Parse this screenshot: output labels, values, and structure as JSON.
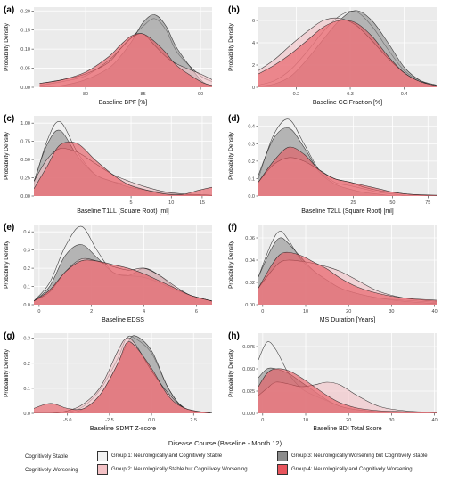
{
  "colors": {
    "panel_bg": "#ebebeb",
    "grid": "#ffffff",
    "group1_fill": "#f2f2f2",
    "group2_fill": "#f4c2c6",
    "group3_fill": "#8c8c8c",
    "group4_fill": "#e8545c",
    "outline": "#222222"
  },
  "legend": {
    "title": "Disease Course (Baseline - Month 12)",
    "row_labels": [
      "Cognitively Stable",
      "Cognitively Worsening"
    ],
    "items": [
      {
        "label": "Group 1: Neurologically and Cognitively Stable",
        "color": "#f2f2f2"
      },
      {
        "label": "Group 2: Neurologically Stable but Cognitively Worsening",
        "color": "#f4c2c6"
      },
      {
        "label": "Group 3: Neurologically Worsening but Cognitively Stable",
        "color": "#8c8c8c"
      },
      {
        "label": "Group 4: Neurologically and Cognitively Worsening",
        "color": "#e8545c"
      }
    ]
  },
  "chart_data": [
    {
      "panel": "(a)",
      "type": "area",
      "xlabel": "Baseline BPF [%]",
      "ylabel": "Probability Density",
      "xlim": [
        75.5,
        91
      ],
      "ylim": [
        0,
        0.21
      ],
      "xticks": [
        80,
        85,
        90
      ],
      "xtick_labels": [
        "80",
        "85",
        "90"
      ],
      "yticks": [
        0,
        0.05,
        0.1,
        0.15,
        0.2
      ],
      "ytick_labels": [
        "0.00",
        "0.05",
        "0.10",
        "0.15",
        "0.20"
      ],
      "x": [
        76,
        78,
        80,
        82,
        83,
        84,
        85,
        86,
        87,
        88,
        90,
        91
      ],
      "series": [
        {
          "group": 1,
          "values": [
            0.005,
            0.015,
            0.03,
            0.07,
            0.1,
            0.13,
            0.16,
            0.18,
            0.15,
            0.09,
            0.03,
            0.015
          ]
        },
        {
          "group": 2,
          "values": [
            0.01,
            0.02,
            0.035,
            0.065,
            0.1,
            0.13,
            0.14,
            0.11,
            0.08,
            0.06,
            0.035,
            0.02
          ]
        },
        {
          "group": 3,
          "values": [
            0.0,
            0.005,
            0.02,
            0.05,
            0.08,
            0.12,
            0.17,
            0.19,
            0.16,
            0.1,
            0.02,
            0.005
          ]
        },
        {
          "group": 4,
          "values": [
            0.01,
            0.02,
            0.04,
            0.08,
            0.11,
            0.135,
            0.14,
            0.12,
            0.09,
            0.055,
            0.015,
            0.005
          ]
        }
      ]
    },
    {
      "panel": "(b)",
      "type": "area",
      "xlabel": "Baseline CC Fraction [%]",
      "ylabel": "Probability Density",
      "xlim": [
        0.13,
        0.46
      ],
      "ylim": [
        0,
        7.2
      ],
      "xticks": [
        0.2,
        0.3,
        0.4
      ],
      "xtick_labels": [
        "0.2",
        "0.3",
        "0.4"
      ],
      "yticks": [
        0,
        2,
        4,
        6
      ],
      "ytick_labels": [
        "0",
        "2",
        "4",
        "6"
      ],
      "x": [
        0.13,
        0.16,
        0.19,
        0.22,
        0.25,
        0.28,
        0.31,
        0.34,
        0.37,
        0.4,
        0.43,
        0.46
      ],
      "series": [
        {
          "group": 1,
          "values": [
            0.2,
            0.6,
            1.6,
            3.2,
            5.0,
            6.4,
            6.8,
            5.5,
            3.4,
            1.5,
            0.6,
            0.2
          ]
        },
        {
          "group": 2,
          "values": [
            1.5,
            2.5,
            3.8,
            5.0,
            6.0,
            6.2,
            5.6,
            4.2,
            2.6,
            1.3,
            0.5,
            0.15
          ]
        },
        {
          "group": 3,
          "values": [
            0.1,
            0.3,
            1.0,
            2.5,
            4.3,
            6.0,
            6.9,
            6.0,
            4.0,
            1.8,
            0.6,
            0.1
          ]
        },
        {
          "group": 4,
          "values": [
            1.2,
            2.0,
            3.0,
            4.2,
            5.4,
            6.0,
            5.8,
            4.6,
            2.8,
            1.3,
            0.5,
            0.15
          ]
        }
      ]
    },
    {
      "panel": "(c)",
      "type": "area",
      "xlabel": "Baseline T1LL (Square Root) [ml]",
      "ylabel": "Probability Density",
      "xlim": [
        0,
        4.1
      ],
      "ylim": [
        0,
        1.1
      ],
      "xticks": [
        2.236,
        3.162,
        3.873
      ],
      "xtick_labels": [
        "5",
        "10",
        "15"
      ],
      "yticks": [
        0,
        0.25,
        0.5,
        0.75,
        1.0
      ],
      "ytick_labels": [
        "0.00",
        "0.25",
        "0.50",
        "0.75",
        "1.00"
      ],
      "x": [
        0.0,
        0.3,
        0.6,
        1.0,
        1.4,
        1.8,
        2.2,
        2.6,
        3.0,
        3.4,
        3.8,
        4.1
      ],
      "series": [
        {
          "group": 1,
          "values": [
            0.15,
            0.75,
            1.02,
            0.6,
            0.3,
            0.2,
            0.15,
            0.08,
            0.03,
            0.01,
            0.0,
            0.0
          ]
        },
        {
          "group": 2,
          "values": [
            0.2,
            0.5,
            0.65,
            0.6,
            0.45,
            0.3,
            0.2,
            0.12,
            0.06,
            0.03,
            0.02,
            0.01
          ]
        },
        {
          "group": 3,
          "values": [
            0.2,
            0.7,
            0.9,
            0.55,
            0.3,
            0.2,
            0.12,
            0.08,
            0.05,
            0.02,
            0.01,
            0.0
          ]
        },
        {
          "group": 4,
          "values": [
            0.1,
            0.4,
            0.7,
            0.72,
            0.5,
            0.3,
            0.15,
            0.08,
            0.03,
            0.02,
            0.08,
            0.12
          ]
        }
      ]
    },
    {
      "panel": "(d)",
      "type": "area",
      "xlabel": "Baseline T2LL (Square Root) [ml]",
      "ylabel": "Probability Density",
      "xlim": [
        0,
        9.4
      ],
      "ylim": [
        0,
        0.46
      ],
      "xticks": [
        5,
        7.071,
        8.944
      ],
      "xtick_labels": [
        "25",
        "50",
        "75"
      ],
      "yticks": [
        0,
        0.1,
        0.2,
        0.3,
        0.4
      ],
      "ytick_labels": [
        "0.0",
        "0.1",
        "0.2",
        "0.3",
        "0.4"
      ],
      "x": [
        0.0,
        0.8,
        1.6,
        2.4,
        3.2,
        4.0,
        4.8,
        5.6,
        6.4,
        7.2,
        8.0,
        9.4
      ],
      "series": [
        {
          "group": 1,
          "values": [
            0.1,
            0.35,
            0.44,
            0.3,
            0.15,
            0.08,
            0.06,
            0.04,
            0.02,
            0.01,
            0.0,
            0.0
          ]
        },
        {
          "group": 2,
          "values": [
            0.08,
            0.18,
            0.22,
            0.2,
            0.15,
            0.1,
            0.08,
            0.05,
            0.03,
            0.02,
            0.01,
            0.0
          ]
        },
        {
          "group": 3,
          "values": [
            0.12,
            0.33,
            0.39,
            0.28,
            0.14,
            0.07,
            0.04,
            0.02,
            0.01,
            0.0,
            0.0,
            0.0
          ]
        },
        {
          "group": 4,
          "values": [
            0.08,
            0.2,
            0.28,
            0.24,
            0.15,
            0.1,
            0.08,
            0.06,
            0.04,
            0.02,
            0.01,
            0.005
          ]
        }
      ]
    },
    {
      "panel": "(e)",
      "type": "area",
      "xlabel": "Baseline EDSS",
      "ylabel": "Probability Density",
      "xlim": [
        -0.2,
        6.6
      ],
      "ylim": [
        0,
        0.44
      ],
      "xticks": [
        0,
        2,
        4,
        6
      ],
      "xtick_labels": [
        "0",
        "2",
        "4",
        "6"
      ],
      "yticks": [
        0,
        0.1,
        0.2,
        0.3,
        0.4
      ],
      "ytick_labels": [
        "0.0",
        "0.1",
        "0.2",
        "0.3",
        "0.4"
      ],
      "x": [
        -0.2,
        0.4,
        1.0,
        1.6,
        2.2,
        2.8,
        3.4,
        4.0,
        4.6,
        5.2,
        5.8,
        6.6
      ],
      "series": [
        {
          "group": 1,
          "values": [
            0.02,
            0.12,
            0.32,
            0.43,
            0.3,
            0.18,
            0.16,
            0.15,
            0.12,
            0.08,
            0.05,
            0.02
          ]
        },
        {
          "group": 2,
          "values": [
            0.02,
            0.07,
            0.18,
            0.25,
            0.24,
            0.21,
            0.19,
            0.2,
            0.16,
            0.1,
            0.05,
            0.02
          ]
        },
        {
          "group": 3,
          "values": [
            0.02,
            0.1,
            0.27,
            0.33,
            0.26,
            0.18,
            0.16,
            0.2,
            0.16,
            0.09,
            0.05,
            0.02
          ]
        },
        {
          "group": 4,
          "values": [
            0.02,
            0.08,
            0.18,
            0.24,
            0.24,
            0.22,
            0.2,
            0.17,
            0.13,
            0.09,
            0.05,
            0.02
          ]
        }
      ]
    },
    {
      "panel": "(f)",
      "type": "area",
      "xlabel": "MS Duration [Years]",
      "ylabel": "Probability Density",
      "xlim": [
        -1,
        40.5
      ],
      "ylim": [
        0,
        0.072
      ],
      "xticks": [
        0,
        10,
        20,
        30,
        40
      ],
      "xtick_labels": [
        "0",
        "10",
        "20",
        "30",
        "40"
      ],
      "yticks": [
        0,
        0.02,
        0.04,
        0.06
      ],
      "ytick_labels": [
        "0.00",
        "0.02",
        "0.04",
        "0.06"
      ],
      "x": [
        -1,
        2,
        4,
        6,
        9,
        12,
        15,
        18,
        22,
        27,
        33,
        40.5
      ],
      "series": [
        {
          "group": 1,
          "values": [
            0.025,
            0.055,
            0.066,
            0.058,
            0.04,
            0.03,
            0.022,
            0.015,
            0.01,
            0.006,
            0.004,
            0.002
          ]
        },
        {
          "group": 2,
          "values": [
            0.015,
            0.03,
            0.038,
            0.04,
            0.039,
            0.037,
            0.034,
            0.03,
            0.022,
            0.012,
            0.006,
            0.003
          ]
        },
        {
          "group": 3,
          "values": [
            0.025,
            0.05,
            0.06,
            0.055,
            0.042,
            0.03,
            0.022,
            0.015,
            0.01,
            0.006,
            0.003,
            0.001
          ]
        },
        {
          "group": 4,
          "values": [
            0.015,
            0.035,
            0.045,
            0.047,
            0.044,
            0.038,
            0.032,
            0.024,
            0.016,
            0.01,
            0.006,
            0.004
          ]
        }
      ]
    },
    {
      "panel": "(g)",
      "type": "area",
      "xlabel": "Baseline SDMT Z-score",
      "ylabel": "Probability Density",
      "xlim": [
        -7,
        3.6
      ],
      "ylim": [
        0,
        0.32
      ],
      "xticks": [
        -5,
        -2.5,
        0,
        2.5
      ],
      "xtick_labels": [
        "-5.0",
        "-2.5",
        "0.0",
        "2.5"
      ],
      "yticks": [
        0,
        0.1,
        0.2,
        0.3
      ],
      "ytick_labels": [
        "0.0",
        "0.1",
        "0.2",
        "0.3"
      ],
      "x": [
        -7,
        -6,
        -5,
        -4,
        -3,
        -2,
        -1.5,
        -1,
        0,
        1,
        2,
        3.6
      ],
      "series": [
        {
          "group": 1,
          "values": [
            0.0,
            0.0,
            0.005,
            0.03,
            0.1,
            0.22,
            0.3,
            0.3,
            0.24,
            0.1,
            0.02,
            0.0
          ]
        },
        {
          "group": 2,
          "values": [
            0.0,
            0.0,
            0.01,
            0.04,
            0.11,
            0.25,
            0.3,
            0.28,
            0.17,
            0.08,
            0.02,
            0.0
          ]
        },
        {
          "group": 3,
          "values": [
            0.0,
            0.0,
            0.0,
            0.02,
            0.08,
            0.2,
            0.27,
            0.31,
            0.25,
            0.1,
            0.02,
            0.0
          ]
        },
        {
          "group": 4,
          "values": [
            0.02,
            0.04,
            0.02,
            0.02,
            0.08,
            0.2,
            0.28,
            0.27,
            0.18,
            0.07,
            0.02,
            0.0
          ]
        }
      ]
    },
    {
      "panel": "(h)",
      "type": "area",
      "xlabel": "Baseline BDI Total Score",
      "ylabel": "Probability Density",
      "xlim": [
        -1,
        40.5
      ],
      "ylim": [
        0,
        0.09
      ],
      "xticks": [
        0,
        10,
        20,
        30,
        40
      ],
      "xtick_labels": [
        "0",
        "10",
        "20",
        "30",
        "40"
      ],
      "yticks": [
        0,
        0.025,
        0.05,
        0.075
      ],
      "ytick_labels": [
        "0.000",
        "0.025",
        "0.050",
        "0.075"
      ],
      "x": [
        -1,
        1,
        3,
        6,
        9,
        12,
        15,
        18,
        22,
        27,
        33,
        40.5
      ],
      "series": [
        {
          "group": 1,
          "values": [
            0.06,
            0.08,
            0.072,
            0.045,
            0.028,
            0.02,
            0.014,
            0.008,
            0.004,
            0.002,
            0.001,
            0.0
          ]
        },
        {
          "group": 2,
          "values": [
            0.02,
            0.028,
            0.035,
            0.033,
            0.03,
            0.032,
            0.035,
            0.032,
            0.02,
            0.008,
            0.003,
            0.001
          ]
        },
        {
          "group": 3,
          "values": [
            0.04,
            0.05,
            0.05,
            0.045,
            0.035,
            0.025,
            0.015,
            0.008,
            0.004,
            0.002,
            0.001,
            0.0
          ]
        },
        {
          "group": 4,
          "values": [
            0.03,
            0.045,
            0.05,
            0.048,
            0.04,
            0.03,
            0.02,
            0.012,
            0.006,
            0.003,
            0.002,
            0.001
          ]
        }
      ]
    }
  ]
}
